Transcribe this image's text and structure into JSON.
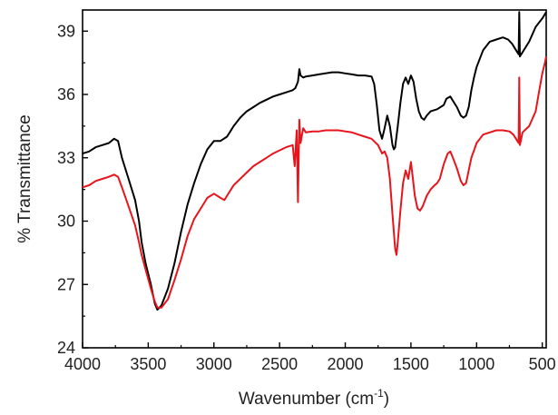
{
  "chart_data": {
    "type": "line",
    "xlabel": "Wavenumber (cm",
    "xlabel_sup": "-1",
    "xlabel_end": ")",
    "ylabel": "% Transmittance",
    "xlim": [
      4000,
      470
    ],
    "ylim": [
      24,
      40
    ],
    "x_reversed": true,
    "x_ticks": [
      4000,
      3500,
      3000,
      2500,
      2000,
      1500,
      1000,
      500
    ],
    "y_ticks": [
      24,
      27,
      30,
      33,
      36,
      39
    ],
    "grid": false,
    "legend": "none",
    "series": [
      {
        "color": "#000000",
        "points": [
          [
            4000,
            33.2
          ],
          [
            3950,
            33.3
          ],
          [
            3900,
            33.5
          ],
          [
            3850,
            33.6
          ],
          [
            3800,
            33.7
          ],
          [
            3760,
            33.9
          ],
          [
            3730,
            33.8
          ],
          [
            3700,
            33.0
          ],
          [
            3650,
            32.0
          ],
          [
            3600,
            31.0
          ],
          [
            3570,
            30.0
          ],
          [
            3550,
            29.0
          ],
          [
            3520,
            28.0
          ],
          [
            3480,
            27.0
          ],
          [
            3450,
            26.1
          ],
          [
            3430,
            25.8
          ],
          [
            3400,
            26.0
          ],
          [
            3350,
            26.8
          ],
          [
            3300,
            28.0
          ],
          [
            3250,
            29.5
          ],
          [
            3200,
            30.8
          ],
          [
            3150,
            31.8
          ],
          [
            3100,
            32.7
          ],
          [
            3050,
            33.4
          ],
          [
            3000,
            33.8
          ],
          [
            2950,
            33.8
          ],
          [
            2900,
            34.0
          ],
          [
            2850,
            34.5
          ],
          [
            2800,
            34.9
          ],
          [
            2750,
            35.2
          ],
          [
            2700,
            35.4
          ],
          [
            2650,
            35.6
          ],
          [
            2600,
            35.75
          ],
          [
            2550,
            35.9
          ],
          [
            2500,
            36.0
          ],
          [
            2450,
            36.1
          ],
          [
            2400,
            36.2
          ],
          [
            2380,
            36.3
          ],
          [
            2360,
            36.6
          ],
          [
            2350,
            37.2
          ],
          [
            2340,
            36.9
          ],
          [
            2320,
            36.8
          ],
          [
            2300,
            36.85
          ],
          [
            2250,
            36.9
          ],
          [
            2200,
            36.95
          ],
          [
            2150,
            37.0
          ],
          [
            2100,
            37.05
          ],
          [
            2050,
            37.05
          ],
          [
            2000,
            37.0
          ],
          [
            1950,
            36.95
          ],
          [
            1900,
            36.9
          ],
          [
            1850,
            36.9
          ],
          [
            1800,
            36.85
          ],
          [
            1780,
            36.5
          ],
          [
            1760,
            35.5
          ],
          [
            1740,
            34.3
          ],
          [
            1720,
            33.9
          ],
          [
            1700,
            34.4
          ],
          [
            1680,
            35.0
          ],
          [
            1660,
            34.5
          ],
          [
            1640,
            33.6
          ],
          [
            1630,
            33.4
          ],
          [
            1620,
            33.5
          ],
          [
            1600,
            34.5
          ],
          [
            1580,
            35.6
          ],
          [
            1560,
            36.5
          ],
          [
            1540,
            36.8
          ],
          [
            1520,
            36.5
          ],
          [
            1500,
            36.9
          ],
          [
            1480,
            36.6
          ],
          [
            1460,
            35.8
          ],
          [
            1440,
            35.2
          ],
          [
            1420,
            34.9
          ],
          [
            1400,
            34.8
          ],
          [
            1380,
            35.0
          ],
          [
            1350,
            35.2
          ],
          [
            1300,
            35.3
          ],
          [
            1250,
            35.5
          ],
          [
            1230,
            35.8
          ],
          [
            1200,
            35.9
          ],
          [
            1180,
            35.7
          ],
          [
            1150,
            35.4
          ],
          [
            1120,
            35.0
          ],
          [
            1100,
            34.9
          ],
          [
            1080,
            35.0
          ],
          [
            1060,
            35.4
          ],
          [
            1040,
            36.2
          ],
          [
            1020,
            36.8
          ],
          [
            1000,
            37.3
          ],
          [
            950,
            38.1
          ],
          [
            900,
            38.5
          ],
          [
            850,
            38.6
          ],
          [
            800,
            38.7
          ],
          [
            760,
            38.6
          ],
          [
            730,
            38.4
          ],
          [
            700,
            38.1
          ],
          [
            680,
            37.9
          ],
          [
            675,
            39.9
          ],
          [
            670,
            37.8
          ],
          [
            650,
            38.0
          ],
          [
            600,
            38.5
          ],
          [
            550,
            39.2
          ],
          [
            500,
            39.6
          ],
          [
            470,
            39.9
          ]
        ]
      },
      {
        "color": "#e8141b",
        "points": [
          [
            4000,
            31.6
          ],
          [
            3950,
            31.7
          ],
          [
            3900,
            31.9
          ],
          [
            3850,
            32.0
          ],
          [
            3800,
            32.1
          ],
          [
            3760,
            32.2
          ],
          [
            3730,
            32.1
          ],
          [
            3700,
            31.6
          ],
          [
            3650,
            30.7
          ],
          [
            3600,
            29.8
          ],
          [
            3570,
            29.0
          ],
          [
            3550,
            28.4
          ],
          [
            3520,
            27.7
          ],
          [
            3480,
            26.8
          ],
          [
            3450,
            26.2
          ],
          [
            3430,
            25.9
          ],
          [
            3400,
            25.9
          ],
          [
            3350,
            26.3
          ],
          [
            3300,
            27.2
          ],
          [
            3250,
            28.2
          ],
          [
            3200,
            29.3
          ],
          [
            3150,
            30.1
          ],
          [
            3100,
            30.6
          ],
          [
            3050,
            31.1
          ],
          [
            3000,
            31.3
          ],
          [
            2950,
            31.1
          ],
          [
            2920,
            31.0
          ],
          [
            2900,
            31.2
          ],
          [
            2850,
            31.7
          ],
          [
            2800,
            32.0
          ],
          [
            2750,
            32.3
          ],
          [
            2700,
            32.6
          ],
          [
            2650,
            32.8
          ],
          [
            2600,
            33.0
          ],
          [
            2550,
            33.2
          ],
          [
            2500,
            33.35
          ],
          [
            2450,
            33.5
          ],
          [
            2400,
            33.6
          ],
          [
            2385,
            32.6
          ],
          [
            2370,
            34.3
          ],
          [
            2360,
            30.9
          ],
          [
            2350,
            34.8
          ],
          [
            2340,
            33.7
          ],
          [
            2320,
            34.4
          ],
          [
            2300,
            34.2
          ],
          [
            2250,
            34.25
          ],
          [
            2200,
            34.25
          ],
          [
            2150,
            34.3
          ],
          [
            2100,
            34.3
          ],
          [
            2050,
            34.3
          ],
          [
            2000,
            34.25
          ],
          [
            1950,
            34.2
          ],
          [
            1900,
            34.1
          ],
          [
            1850,
            34.0
          ],
          [
            1800,
            33.9
          ],
          [
            1750,
            33.6
          ],
          [
            1720,
            33.2
          ],
          [
            1700,
            33.3
          ],
          [
            1680,
            33.0
          ],
          [
            1660,
            32.0
          ],
          [
            1640,
            30.3
          ],
          [
            1620,
            28.7
          ],
          [
            1610,
            28.4
          ],
          [
            1600,
            29.0
          ],
          [
            1580,
            30.5
          ],
          [
            1560,
            31.8
          ],
          [
            1540,
            32.4
          ],
          [
            1520,
            32.0
          ],
          [
            1500,
            32.8
          ],
          [
            1490,
            32.3
          ],
          [
            1470,
            31.2
          ],
          [
            1450,
            30.6
          ],
          [
            1430,
            30.5
          ],
          [
            1410,
            30.7
          ],
          [
            1380,
            31.2
          ],
          [
            1350,
            31.5
          ],
          [
            1320,
            31.7
          ],
          [
            1300,
            31.8
          ],
          [
            1280,
            32.0
          ],
          [
            1250,
            32.7
          ],
          [
            1220,
            33.2
          ],
          [
            1200,
            33.3
          ],
          [
            1180,
            33.0
          ],
          [
            1150,
            32.5
          ],
          [
            1120,
            31.9
          ],
          [
            1100,
            31.7
          ],
          [
            1080,
            31.8
          ],
          [
            1060,
            32.4
          ],
          [
            1040,
            33.0
          ],
          [
            1000,
            33.7
          ],
          [
            950,
            34.1
          ],
          [
            900,
            34.2
          ],
          [
            850,
            34.3
          ],
          [
            800,
            34.3
          ],
          [
            750,
            34.25
          ],
          [
            720,
            34.1
          ],
          [
            700,
            33.9
          ],
          [
            680,
            33.7
          ],
          [
            675,
            36.8
          ],
          [
            670,
            33.6
          ],
          [
            650,
            34.2
          ],
          [
            600,
            34.5
          ],
          [
            550,
            35.2
          ],
          [
            520,
            36.3
          ],
          [
            500,
            37.0
          ],
          [
            480,
            37.5
          ],
          [
            470,
            37.8
          ]
        ]
      }
    ]
  }
}
